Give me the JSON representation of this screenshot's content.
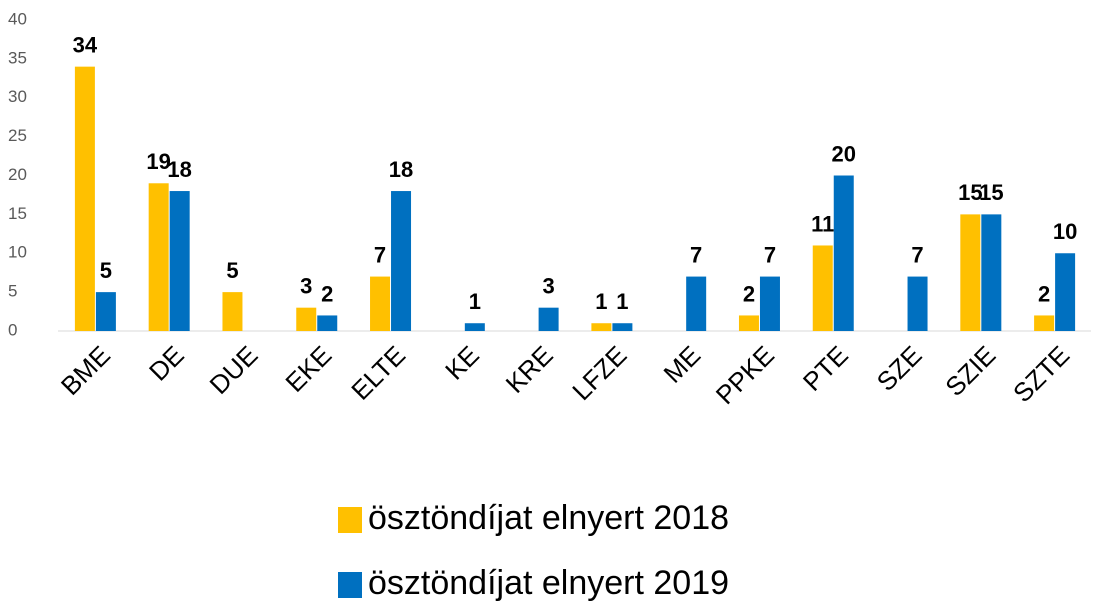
{
  "chart_data": {
    "type": "bar",
    "categories": [
      "BME",
      "DE",
      "DUE",
      "EKE",
      "ELTE",
      "KE",
      "KRE",
      "LFZE",
      "ME",
      "PPKE",
      "PTE",
      "SZE",
      "SZIE",
      "SZTE"
    ],
    "series": [
      {
        "name": "ösztöndíjat elnyert 2018",
        "color": "#FFC000",
        "values": [
          34,
          19,
          5,
          3,
          7,
          null,
          null,
          1,
          null,
          2,
          11,
          null,
          15,
          2
        ]
      },
      {
        "name": "ösztöndíjat elnyert 2019",
        "color": "#0070C0",
        "values": [
          5,
          18,
          null,
          2,
          18,
          1,
          3,
          1,
          7,
          7,
          20,
          7,
          15,
          10
        ]
      }
    ],
    "ylim": [
      0,
      40
    ],
    "yticks": [
      0,
      5,
      10,
      15,
      20,
      25,
      30,
      35,
      40
    ],
    "grid": false,
    "legend": "bottom"
  }
}
